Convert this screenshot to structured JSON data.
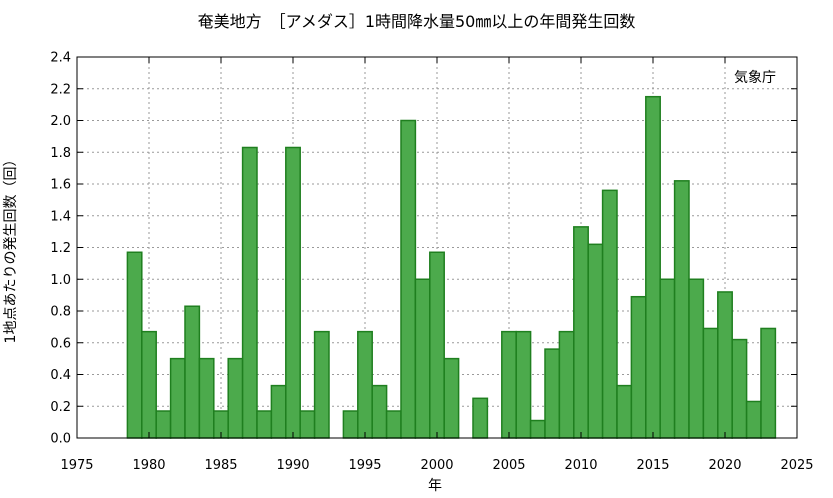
{
  "chart_data": {
    "type": "bar",
    "title": "奄美地方　［アメダス］1時間降水量50㎜以上の年間発生回数",
    "xlabel": "年",
    "ylabel": "1地点あたりの発生回数（回）",
    "credit": "気象庁",
    "xlim": [
      1975,
      2025
    ],
    "ylim": [
      0,
      2.4
    ],
    "x_ticks": [
      1975,
      1980,
      1985,
      1990,
      1995,
      2000,
      2005,
      2010,
      2015,
      2020,
      2025
    ],
    "y_ticks": [
      "0.0",
      "0.2",
      "0.4",
      "0.6",
      "0.8",
      "1.0",
      "1.2",
      "1.4",
      "1.6",
      "1.8",
      "2.0",
      "2.2",
      "2.4"
    ],
    "grid": true,
    "bar_color": "#4caa4c",
    "bar_edge_color": "#1f7f1f",
    "years": [
      1976,
      1977,
      1978,
      1979,
      1980,
      1981,
      1982,
      1983,
      1984,
      1985,
      1986,
      1987,
      1988,
      1989,
      1990,
      1991,
      1992,
      1993,
      1994,
      1995,
      1996,
      1997,
      1998,
      1999,
      2000,
      2001,
      2002,
      2003,
      2004,
      2005,
      2006,
      2007,
      2008,
      2009,
      2010,
      2011,
      2012,
      2013,
      2014,
      2015,
      2016,
      2017,
      2018,
      2019,
      2020,
      2021,
      2022,
      2023
    ],
    "values": [
      0,
      0,
      0,
      1.17,
      0.67,
      0.17,
      0.5,
      0.83,
      0.5,
      0.17,
      0.5,
      1.83,
      0.17,
      0.33,
      1.83,
      0.17,
      0.67,
      0,
      0.17,
      0.67,
      0.33,
      0.17,
      2.0,
      1.0,
      1.17,
      0.5,
      0,
      0.25,
      0,
      0.67,
      0.67,
      0.11,
      0.56,
      0.67,
      1.33,
      1.22,
      1.56,
      0.33,
      0.89,
      2.15,
      1.0,
      1.62,
      1.0,
      0.69,
      0.92,
      0.62,
      0.23,
      0.69
    ]
  }
}
